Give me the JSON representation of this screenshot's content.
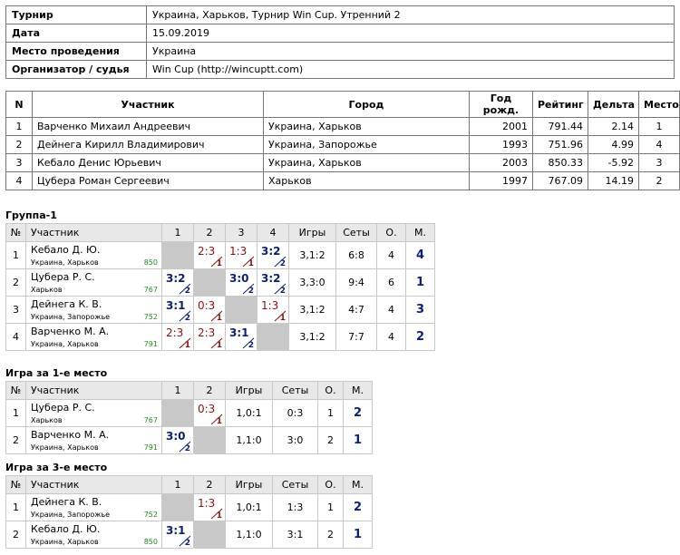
{
  "info": {
    "rows": [
      [
        "Турнир",
        "Украина, Харьков, Турнир Win Cup. Утренний 2"
      ],
      [
        "Дата",
        "15.09.2019"
      ],
      [
        "Место проведения",
        "Украина"
      ],
      [
        "Организатор / судья",
        "Win Cup (http://wincuptt.com)"
      ]
    ]
  },
  "participants": {
    "header": [
      "N",
      "Участник",
      "Город",
      "Год рожд.",
      "Рейтинг",
      "Дельта",
      "Место"
    ],
    "rows": [
      [
        "1",
        "Варченко Михаил Андреевич",
        "Украина, Харьков",
        "2001",
        "791.44",
        "2.14",
        "1"
      ],
      [
        "2",
        "Дейнега Кирилл Владимирович",
        "Украина, Запорожье",
        "1993",
        "751.96",
        "4.99",
        "4"
      ],
      [
        "3",
        "Кебало Денис Юрьевич",
        "Украина, Харьков",
        "2003",
        "850.33",
        "-5.92",
        "3"
      ],
      [
        "4",
        "Цубера Роман Сергеевич",
        "Харьков",
        "1997",
        "767.09",
        "14.19",
        "2"
      ]
    ]
  },
  "groups": [
    {
      "title": "Группа-1",
      "header": [
        "№",
        "Участник",
        "1",
        "2",
        "3",
        "4",
        "Игры",
        "Сеты",
        "О.",
        "М."
      ],
      "rows": [
        {
          "n": "1",
          "name": "Кебало Д. Ю.",
          "city": "Украина, Харьков",
          "rating": "850",
          "cells": [
            null,
            {
              "score": "2:3",
              "sub": "1"
            },
            {
              "score": "1:3",
              "sub": "1"
            },
            {
              "score": "3:2",
              "sub": "2"
            }
          ],
          "games": "3,1:2",
          "sets": "6:8",
          "points": "4",
          "place": "4"
        },
        {
          "n": "2",
          "name": "Цубера Р. С.",
          "city": "Харьков",
          "rating": "767",
          "cells": [
            {
              "score": "3:2",
              "sub": "2"
            },
            null,
            {
              "score": "3:0",
              "sub": "2"
            },
            {
              "score": "3:2",
              "sub": "2"
            }
          ],
          "games": "3,3:0",
          "sets": "9:4",
          "points": "6",
          "place": "1"
        },
        {
          "n": "3",
          "name": "Дейнега К. В.",
          "city": "Украина, Запорожье",
          "rating": "752",
          "cells": [
            {
              "score": "3:1",
              "sub": "2"
            },
            {
              "score": "0:3",
              "sub": "1"
            },
            null,
            {
              "score": "1:3",
              "sub": "1"
            }
          ],
          "games": "3,1:2",
          "sets": "4:7",
          "points": "4",
          "place": "3"
        },
        {
          "n": "4",
          "name": "Варченко М. А.",
          "city": "Украина, Харьков",
          "rating": "791",
          "cells": [
            {
              "score": "2:3",
              "sub": "1"
            },
            {
              "score": "2:3",
              "sub": "1"
            },
            {
              "score": "3:1",
              "sub": "2"
            },
            null
          ],
          "games": "3,1:2",
          "sets": "7:7",
          "points": "4",
          "place": "2"
        }
      ]
    },
    {
      "title": "Игра за 1-е место",
      "header": [
        "№",
        "Участник",
        "1",
        "2",
        "Игры",
        "Сеты",
        "О.",
        "М."
      ],
      "rows": [
        {
          "n": "1",
          "name": "Цубера Р. С.",
          "city": "Харьков",
          "rating": "767",
          "cells": [
            null,
            {
              "score": "0:3",
              "sub": "1"
            }
          ],
          "games": "1,0:1",
          "sets": "0:3",
          "points": "1",
          "place": "2"
        },
        {
          "n": "2",
          "name": "Варченко М. А.",
          "city": "Украина, Харьков",
          "rating": "791",
          "cells": [
            {
              "score": "3:0",
              "sub": "2"
            },
            null
          ],
          "games": "1,1:0",
          "sets": "3:0",
          "points": "2",
          "place": "1"
        }
      ]
    },
    {
      "title": "Игра за 3-е место",
      "header": [
        "№",
        "Участник",
        "1",
        "2",
        "Игры",
        "Сеты",
        "О.",
        "М."
      ],
      "rows": [
        {
          "n": "1",
          "name": "Дейнега К. В.",
          "city": "Украина, Запорожье",
          "rating": "752",
          "cells": [
            null,
            {
              "score": "1:3",
              "sub": "1"
            }
          ],
          "games": "1,0:1",
          "sets": "1:3",
          "points": "1",
          "place": "2"
        },
        {
          "n": "2",
          "name": "Кебало Д. Ю.",
          "city": "Украина, Харьков",
          "rating": "850",
          "cells": [
            {
              "score": "3:1",
              "sub": "2"
            },
            null
          ],
          "games": "1,1:0",
          "sets": "3:1",
          "points": "2",
          "place": "1"
        }
      ]
    }
  ]
}
